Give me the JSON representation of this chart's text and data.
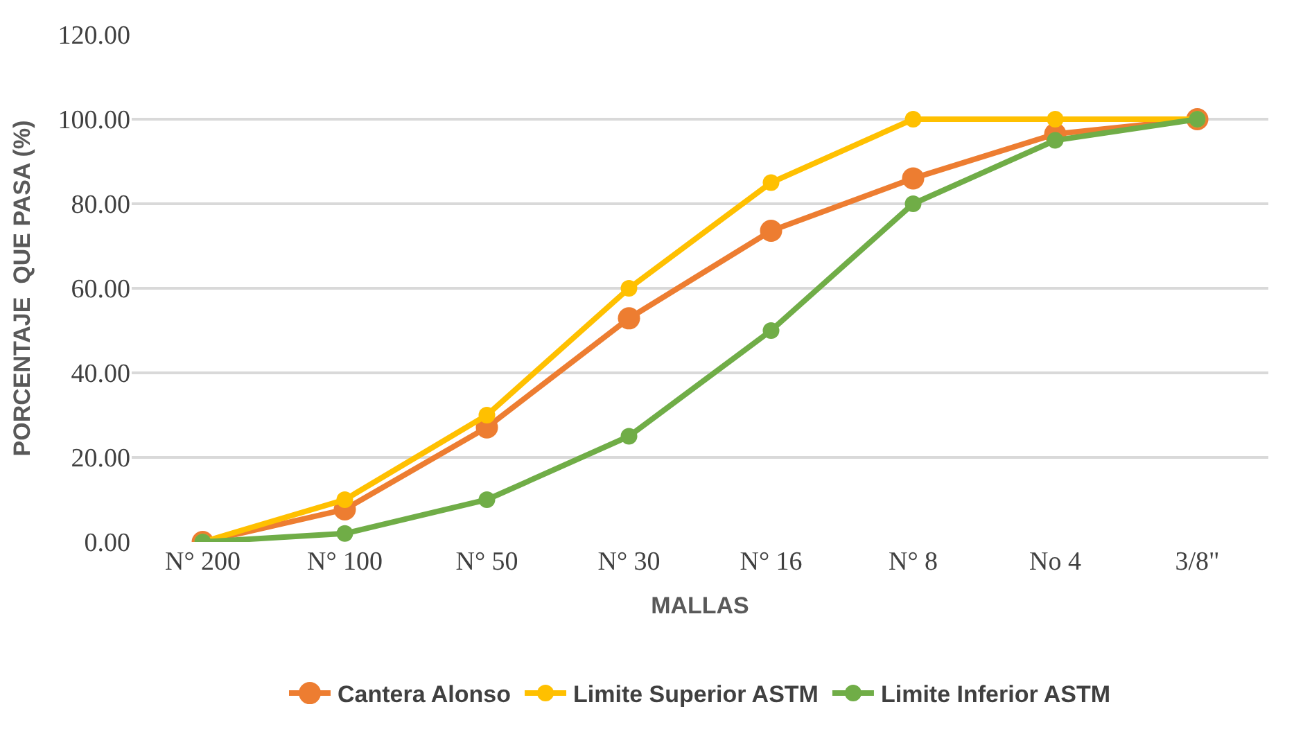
{
  "chart_data": {
    "type": "line",
    "xlabel": "MALLAS",
    "ylabel": "PORCENTAJE  QUE PASA (%)",
    "categories": [
      "N° 200",
      "N° 100",
      "N° 50",
      "N° 30",
      "N° 16",
      "N° 8",
      "No 4",
      "3/8\""
    ],
    "series": [
      {
        "name": "Cantera Alonso",
        "color": "#ed7d31",
        "values": [
          0,
          7.7,
          27.1,
          52.9,
          73.6,
          86.0,
          96.5,
          100
        ]
      },
      {
        "name": "Limite Superior ASTM",
        "color": "#ffc000",
        "values": [
          0,
          10,
          30,
          60,
          85,
          100,
          100,
          100
        ]
      },
      {
        "name": "Limite Inferior ASTM",
        "color": "#70ad47",
        "values": [
          0,
          2,
          10,
          25,
          50,
          80,
          95,
          100
        ]
      }
    ],
    "ylim": [
      0,
      120
    ],
    "yticks": [
      {
        "value": 0,
        "label": "0.00"
      },
      {
        "value": 20,
        "label": "20.00"
      },
      {
        "value": 40,
        "label": "40.00"
      },
      {
        "value": 60,
        "label": "60.00"
      },
      {
        "value": 80,
        "label": "80.00"
      },
      {
        "value": 100,
        "label": "100.00"
      },
      {
        "value": 120,
        "label": "120.00"
      }
    ],
    "grid": "y",
    "legend": "bottom",
    "marker": "circle",
    "line_style": "solid"
  }
}
